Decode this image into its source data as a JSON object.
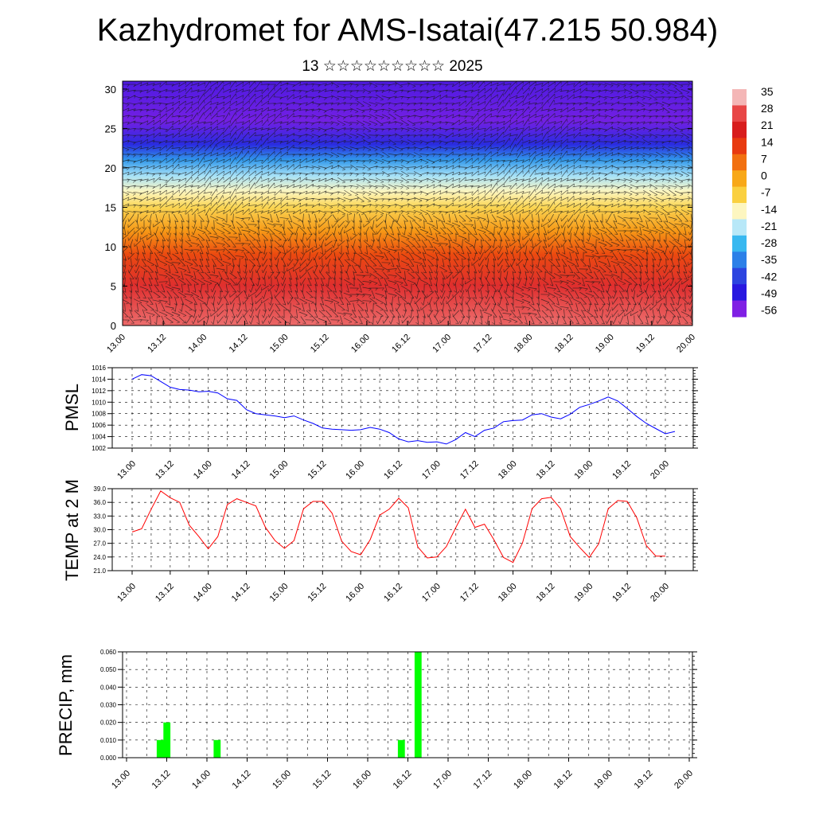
{
  "title": "Kazhydromet for AMS-Isatai(47.215 50.984)",
  "subtitle": "13 ☆☆☆☆☆☆☆☆☆ 2025",
  "time_ticks": [
    "13.00",
    "13.12",
    "14.00",
    "14.12",
    "15.00",
    "15.12",
    "16.00",
    "16.12",
    "17.00",
    "17.12",
    "18.00",
    "18.12",
    "19.00",
    "19.12",
    "20.00"
  ],
  "chart_data": [
    {
      "type": "heatmap",
      "title": "",
      "ylim": [
        0,
        31
      ],
      "yticks": [
        0,
        5,
        10,
        15,
        20,
        25,
        30
      ],
      "colorbar": {
        "labels": [
          "35",
          "28",
          "21",
          "14",
          "7",
          "0",
          "-7",
          "-14",
          "-21",
          "-28",
          "-35",
          "-42",
          "-49",
          "-56"
        ],
        "stops": [
          {
            "v": 35,
            "color": "#f4b6b6"
          },
          {
            "v": 28,
            "color": "#e84646"
          },
          {
            "v": 21,
            "color": "#d81c1c"
          },
          {
            "v": 14,
            "color": "#e83a10"
          },
          {
            "v": 7,
            "color": "#f27010"
          },
          {
            "v": 0,
            "color": "#f8a818"
          },
          {
            "v": -7,
            "color": "#fad040"
          },
          {
            "v": -14,
            "color": "#fdf6c0"
          },
          {
            "v": -21,
            "color": "#b8e8f8"
          },
          {
            "v": -28,
            "color": "#38b8f0"
          },
          {
            "v": -35,
            "color": "#2c80e8"
          },
          {
            "v": -42,
            "color": "#2c44e0"
          },
          {
            "v": -49,
            "color": "#2818e0"
          },
          {
            "v": -56,
            "color": "#8020e4"
          }
        ]
      },
      "temperature_profile": [
        {
          "level": 0,
          "value": 30
        },
        {
          "level": 5,
          "value": 24
        },
        {
          "level": 9,
          "value": 12
        },
        {
          "level": 12,
          "value": 2
        },
        {
          "level": 15,
          "value": -8
        },
        {
          "level": 17,
          "value": -14
        },
        {
          "level": 19,
          "value": -22
        },
        {
          "level": 21,
          "value": -32
        },
        {
          "level": 23,
          "value": -46
        },
        {
          "level": 26,
          "value": -55
        },
        {
          "level": 31,
          "value": -52
        }
      ]
    },
    {
      "type": "line",
      "ylabel": "PMSL",
      "ylim": [
        1002,
        1016
      ],
      "yticks": [
        1002,
        1004,
        1006,
        1008,
        1010,
        1012,
        1014,
        1016
      ],
      "color": "#0000ff",
      "series": [
        {
          "values": [
            1014.0,
            1014.8,
            1014.6,
            1013.6,
            1012.6,
            1012.2,
            1012.1,
            1011.8,
            1011.9,
            1011.6,
            1010.6,
            1010.3,
            1008.7,
            1008.0,
            1007.8,
            1007.6,
            1007.3,
            1007.6,
            1006.9,
            1006.3,
            1005.5,
            1005.3,
            1005.2,
            1005.1,
            1005.2,
            1005.6,
            1005.3,
            1004.7,
            1003.6,
            1003.1,
            1003.3,
            1003.0,
            1003.1,
            1002.7,
            1003.5,
            1004.7,
            1004.0,
            1005.1,
            1005.5,
            1006.6,
            1006.8,
            1006.9,
            1007.8,
            1008.0,
            1007.4,
            1007.1,
            1007.9,
            1009.1,
            1009.6,
            1010.2,
            1010.9,
            1010.2,
            1008.9,
            1007.5,
            1006.3,
            1005.4,
            1004.5,
            1004.9
          ]
        }
      ]
    },
    {
      "type": "line",
      "ylabel": "TEMP at 2 M",
      "ylim": [
        21,
        39
      ],
      "yticks": [
        "21.0",
        "24.0",
        "27.0",
        "30.0",
        "33.0",
        "36.0",
        "39.0"
      ],
      "color": "#ff0000",
      "series": [
        {
          "values": [
            29.5,
            30.2,
            34.5,
            38.5,
            37.0,
            36.0,
            31.0,
            28.5,
            25.8,
            28.5,
            35.5,
            36.8,
            36.0,
            35.2,
            30.5,
            27.6,
            25.9,
            27.6,
            34.6,
            36.2,
            36.2,
            33.6,
            27.5,
            25.2,
            24.5,
            27.8,
            33.2,
            34.5,
            36.9,
            34.8,
            26.2,
            23.8,
            24.0,
            26.3,
            30.5,
            34.5,
            30.5,
            31.2,
            27.8,
            23.9,
            22.8,
            27.1,
            34.6,
            36.8,
            37.1,
            34.6,
            28.5,
            26.1,
            23.9,
            26.9,
            34.6,
            36.4,
            36.2,
            32.6,
            26.5,
            24.2,
            24.2
          ]
        }
      ]
    },
    {
      "type": "bar",
      "ylabel": "PRECIP, mm",
      "ylim": [
        0,
        0.06
      ],
      "yticks": [
        "0.000",
        "0.010",
        "0.020",
        "0.030",
        "0.040",
        "0.050",
        "0.060"
      ],
      "color": "#00ff00",
      "bars": [
        {
          "time": 10,
          "value": 0.01
        },
        {
          "time": 12,
          "value": 0.02
        },
        {
          "time": 27,
          "value": 0.01
        },
        {
          "time": 82,
          "value": 0.01
        },
        {
          "time": 87,
          "value": 0.06
        }
      ]
    }
  ]
}
